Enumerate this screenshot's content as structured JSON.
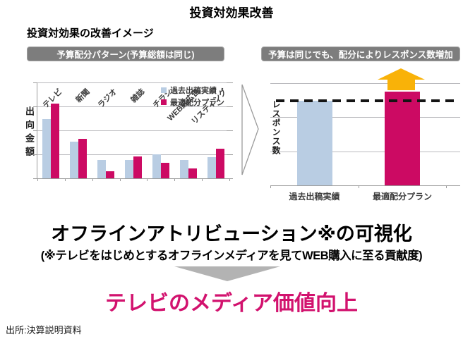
{
  "page": {
    "title": "投資対効果改善",
    "subtitle": "投資対効果の改善イメージ",
    "source": "出所:決算説明資料"
  },
  "banners": {
    "left": "予算配分パターン(予算総額は同じ)",
    "right": "予算は同じでも、配分によりレスポンス数増加"
  },
  "colors": {
    "past_series_blue": "#b9cde3",
    "optimal_series_magenta": "#cc0a63",
    "arrow_yellow": "#f9b208",
    "banner_gray": "#7d7d7d",
    "accent_text_magenta": "#d2126e",
    "transition_gray": "#b3b3b3"
  },
  "callout": {
    "headline": "オフラインアトリビューション※の可視化",
    "note": "(※テレビをはじめとするオフラインメディアを見てWEB購入に至る貢献度)",
    "highlight": "テレビのメディア価値向上"
  },
  "chart_data": [
    {
      "type": "bar",
      "title": "予算配分パターン(予算総額は同じ)",
      "xlabel": "",
      "ylabel": "出向金額",
      "categories": [
        "テレビ",
        "新聞",
        "ラジオ",
        "雑誌",
        "チラシ",
        "WEB純広告",
        "リスティング"
      ],
      "series": [
        {
          "name": "過去出稿実績",
          "color": "#b9cde3",
          "values": [
            62,
            38,
            19,
            19,
            25,
            19,
            22
          ]
        },
        {
          "name": "最適配分プラン",
          "color": "#cc0a63",
          "values": [
            78,
            41,
            7,
            23,
            16,
            10,
            31
          ]
        }
      ],
      "ylim": [
        0,
        100
      ],
      "grid": true,
      "gridline_values": [
        0,
        25,
        50,
        75,
        100
      ],
      "legend_position": "top-right"
    },
    {
      "type": "bar",
      "title": "予算は同じでも、配分によりレスポンス数増加",
      "xlabel": "",
      "ylabel": "レスポンス数",
      "categories": [
        "過去出稿実績",
        "最適配分プラン"
      ],
      "series": [
        {
          "name": "レスポンス数",
          "values": [
            83,
            92
          ],
          "colors": [
            "#b9cde3",
            "#cc0a63"
          ]
        }
      ],
      "ylim": [
        0,
        100
      ],
      "grid": true,
      "gridline_values": [
        0,
        33.3,
        66.7,
        100
      ],
      "annotations": {
        "dashed_baseline_value": 83,
        "up_arrow_over_category": "最適配分プラン"
      }
    }
  ]
}
